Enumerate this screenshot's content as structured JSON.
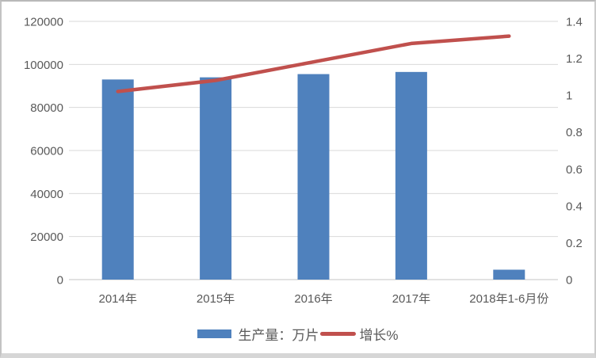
{
  "chart_data": {
    "type": "bar",
    "subtype": "bar+line combo",
    "title": "",
    "categories": [
      "2014年",
      "2015年",
      "2016年",
      "2017年",
      "2018年1-6月份"
    ],
    "series": [
      {
        "name": "生产量：万片",
        "type": "bar",
        "axis": "left",
        "color": "#4F81BD",
        "values": [
          93000,
          94000,
          95500,
          96500,
          4600
        ]
      },
      {
        "name": "增长%",
        "type": "line",
        "axis": "right",
        "color": "#C0504D",
        "values": [
          1.02,
          1.08,
          1.18,
          1.28,
          1.32
        ]
      }
    ],
    "left_axis": {
      "min": 0,
      "max": 120000,
      "tick_step": 20000,
      "tick_labels": [
        "120000",
        "100000",
        "80000",
        "60000",
        "40000",
        "20000",
        "0"
      ]
    },
    "right_axis": {
      "min": 0,
      "max": 1.4,
      "tick_step": 0.2,
      "tick_labels": [
        "1.4",
        "1.2",
        "1",
        "0.8",
        "0.6",
        "0.4",
        "0.2",
        "0"
      ]
    },
    "grid": true,
    "legend_position": "bottom"
  },
  "colors": {
    "bar": "#4F81BD",
    "line": "#C0504D",
    "gridline": "#D9D9D9",
    "axis_line": "#C6C6C6",
    "axis_text": "#595959",
    "background": "#FFFFFF"
  }
}
